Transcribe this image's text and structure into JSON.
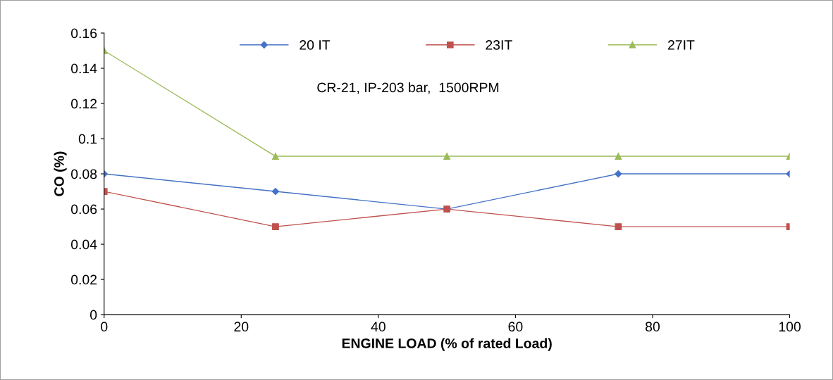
{
  "chart_data": {
    "type": "line",
    "xlabel": "ENGINE LOAD (% of rated Load)",
    "ylabel": "CO (%)",
    "x": [
      0,
      25,
      50,
      75,
      100
    ],
    "series": [
      {
        "name": "20 IT",
        "color": "#4472c4",
        "marker": "diamond",
        "values": [
          0.08,
          0.07,
          0.06,
          0.08,
          0.08
        ]
      },
      {
        "name": "23IT",
        "color": "#c0504d",
        "marker": "square",
        "values": [
          0.07,
          0.05,
          0.06,
          0.05,
          0.05
        ]
      },
      {
        "name": "27IT",
        "color": "#9bbb59",
        "marker": "triangle",
        "values": [
          0.15,
          0.09,
          0.09,
          0.09,
          0.09
        ]
      }
    ],
    "xlim": [
      0,
      100
    ],
    "xticks": [
      0,
      20,
      40,
      60,
      80,
      100
    ],
    "ylim": [
      0,
      0.16
    ],
    "yticks": [
      0,
      0.02,
      0.04,
      0.06,
      0.08,
      0.1,
      0.12,
      0.14,
      0.16
    ],
    "annotations": [
      "CR-21, IP-203 bar,  1500RPM"
    ],
    "legend": "top",
    "grid": false,
    "line_style": "solid"
  }
}
